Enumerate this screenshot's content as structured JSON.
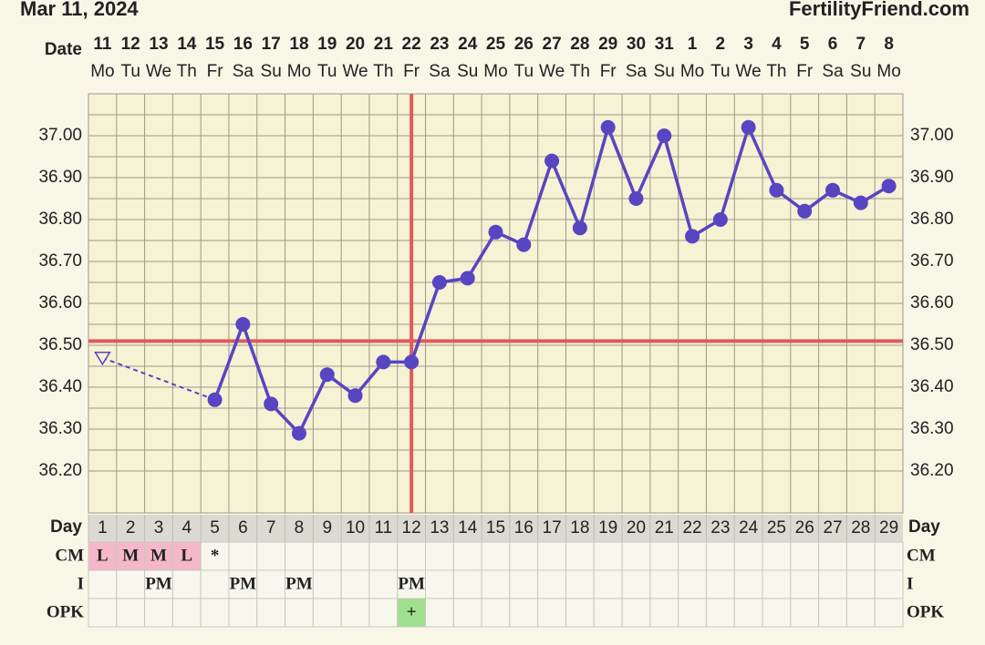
{
  "chart_data": {
    "type": "line",
    "title": "Mar 11, 2024",
    "source": "FertilityFriend.com",
    "date_label": "Date",
    "day_label": "Day",
    "dates": [
      "11",
      "12",
      "13",
      "14",
      "15",
      "16",
      "17",
      "18",
      "19",
      "20",
      "21",
      "22",
      "23",
      "24",
      "25",
      "26",
      "27",
      "28",
      "29",
      "30",
      "31",
      "1",
      "2",
      "3",
      "4",
      "5",
      "6",
      "7",
      "8"
    ],
    "weekdays": [
      "Mo",
      "Tu",
      "We",
      "Th",
      "Fr",
      "Sa",
      "Su",
      "Mo",
      "Tu",
      "We",
      "Th",
      "Fr",
      "Sa",
      "Su",
      "Mo",
      "Tu",
      "We",
      "Th",
      "Fr",
      "Sa",
      "Su",
      "Mo",
      "Tu",
      "We",
      "Th",
      "Fr",
      "Sa",
      "Su",
      "Mo"
    ],
    "cycle_days": [
      1,
      2,
      3,
      4,
      5,
      6,
      7,
      8,
      9,
      10,
      11,
      12,
      13,
      14,
      15,
      16,
      17,
      18,
      19,
      20,
      21,
      22,
      23,
      24,
      25,
      26,
      27,
      28,
      29
    ],
    "series": [
      {
        "color": "#5845c2",
        "values": [
          null,
          null,
          null,
          null,
          36.37,
          36.55,
          36.36,
          36.29,
          36.43,
          36.38,
          36.46,
          36.46,
          36.65,
          36.66,
          36.77,
          36.74,
          36.94,
          36.78,
          37.02,
          36.85,
          37.0,
          36.76,
          36.8,
          37.02,
          36.87,
          36.82,
          36.87,
          36.84,
          36.88
        ]
      },
      {
        "color": "#5845c2",
        "marker": "open-triangle",
        "values": [
          36.47,
          null,
          null,
          null,
          null,
          null,
          null,
          null,
          null,
          null,
          null,
          null,
          null,
          null,
          null,
          null,
          null,
          null,
          null,
          null,
          null,
          null,
          null,
          null,
          null,
          null,
          null,
          null,
          null
        ]
      }
    ],
    "coverline": 36.51,
    "ovulation_day": 12,
    "reference_color": "#e05a5c",
    "ylim": [
      36.1,
      37.1
    ],
    "yticks": [
      {
        "value": 36.2,
        "label": "36.20"
      },
      {
        "value": 36.3,
        "label": "36.30"
      },
      {
        "value": 36.4,
        "label": "36.40"
      },
      {
        "value": 36.5,
        "label": "36.50"
      },
      {
        "value": 36.6,
        "label": "36.60"
      },
      {
        "value": 36.7,
        "label": "36.70"
      },
      {
        "value": 36.8,
        "label": "36.80"
      },
      {
        "value": 36.9,
        "label": "36.90"
      },
      {
        "value": 37.0,
        "label": "37.00"
      }
    ],
    "grid": true,
    "rows": [
      {
        "label": "CM",
        "color": "#f4b8cb",
        "values": [
          "L",
          "M",
          "M",
          "L",
          "*",
          null,
          null,
          null,
          null,
          null,
          null,
          null,
          null,
          null,
          null,
          null,
          null,
          null,
          null,
          null,
          null,
          null,
          null,
          null,
          null,
          null,
          null,
          null,
          null
        ]
      },
      {
        "label": "I",
        "values": [
          null,
          null,
          "PM",
          null,
          null,
          "PM",
          null,
          "PM",
          null,
          null,
          null,
          "PM",
          null,
          null,
          null,
          null,
          null,
          null,
          null,
          null,
          null,
          null,
          null,
          null,
          null,
          null,
          null,
          null,
          null
        ]
      },
      {
        "label": "OPK",
        "color": "#9fe08e",
        "values": [
          null,
          null,
          null,
          null,
          null,
          null,
          null,
          null,
          null,
          null,
          null,
          "+",
          null,
          null,
          null,
          null,
          null,
          null,
          null,
          null,
          null,
          null,
          null,
          null,
          null,
          null,
          null,
          null,
          null
        ]
      }
    ]
  }
}
